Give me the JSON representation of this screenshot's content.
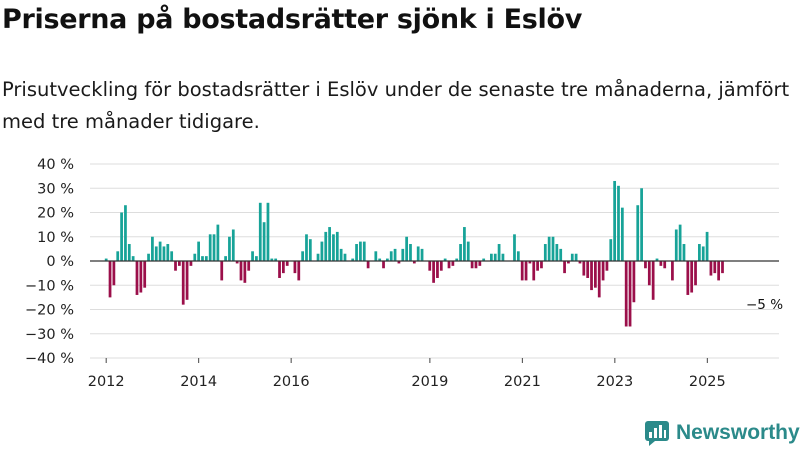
{
  "title": "Priserna på bostadsrätter sjönk i Eslöv",
  "subtitle": "Prisutveckling för bostadsrätter i Eslöv under de senaste tre månaderna, jämfört med tre månader tidigare.",
  "brand": "Newsworthy",
  "colors": {
    "positive": "#17a398",
    "negative": "#9b0f4a",
    "grid": "#dddddd",
    "zero": "#333333",
    "brand": "#2b8a8a"
  },
  "chart_data": {
    "type": "bar",
    "ylim": [
      -40,
      40
    ],
    "yticks": [
      -40,
      -30,
      -20,
      -10,
      0,
      10,
      20,
      30,
      40
    ],
    "ytick_labels": [
      "−40 %",
      "−30 %",
      "−20 %",
      "−10 %",
      "0 %",
      "10 %",
      "20 %",
      "30 %",
      "40 %"
    ],
    "xlim": [
      2011.65,
      2026.55
    ],
    "xticks": [
      2012,
      2014,
      2016,
      2019,
      2021,
      2023,
      2025
    ],
    "xtick_labels": [
      "2012",
      "2014",
      "2016",
      "2019",
      "2021",
      "2023",
      "2025"
    ],
    "grid": true,
    "annotation": {
      "text": "−5 %",
      "x": 2025.75,
      "y": -5
    },
    "series": [
      {
        "name": "Prisutveckling",
        "x_start": 2012.0,
        "step": 0.0833,
        "values": [
          1,
          -15,
          -10,
          4,
          20,
          23,
          7,
          2,
          -14,
          -13,
          -11,
          3,
          10,
          6,
          8,
          6,
          7,
          4,
          -4,
          -2,
          -18,
          -16,
          -2,
          3,
          8,
          2,
          2,
          11,
          11,
          15,
          -8,
          2,
          10,
          13,
          -1,
          -8,
          -9,
          -4,
          4,
          2,
          24,
          16,
          24,
          1,
          1,
          -7,
          -5,
          -2,
          0,
          -5,
          -8,
          4,
          11,
          9,
          0,
          3,
          8,
          12,
          14,
          11,
          12,
          5,
          3,
          0,
          1,
          7,
          8,
          8,
          -3,
          0,
          4,
          1,
          -3,
          1,
          4,
          5,
          -1,
          5,
          10,
          7,
          -1,
          6,
          5,
          0,
          -4,
          -9,
          -7,
          -4,
          1,
          -3,
          -2,
          1,
          7,
          14,
          8,
          -3,
          -3,
          -2,
          1,
          0,
          3,
          3,
          7,
          3,
          0,
          0,
          11,
          4,
          -8,
          -8,
          -1,
          -8,
          -4,
          -3,
          7,
          10,
          10,
          7,
          5,
          -5,
          -1,
          3,
          3,
          -1,
          -6,
          -7,
          -12,
          -11,
          -15,
          -8,
          -4,
          9,
          33,
          31,
          22,
          -27,
          -27,
          -17,
          23,
          30,
          -3,
          -10,
          -16,
          1,
          -2,
          -3,
          0,
          -8,
          13,
          15,
          7,
          -14,
          -13,
          -10,
          7,
          6,
          12,
          -6,
          -5,
          -8,
          -5
        ]
      }
    ]
  }
}
